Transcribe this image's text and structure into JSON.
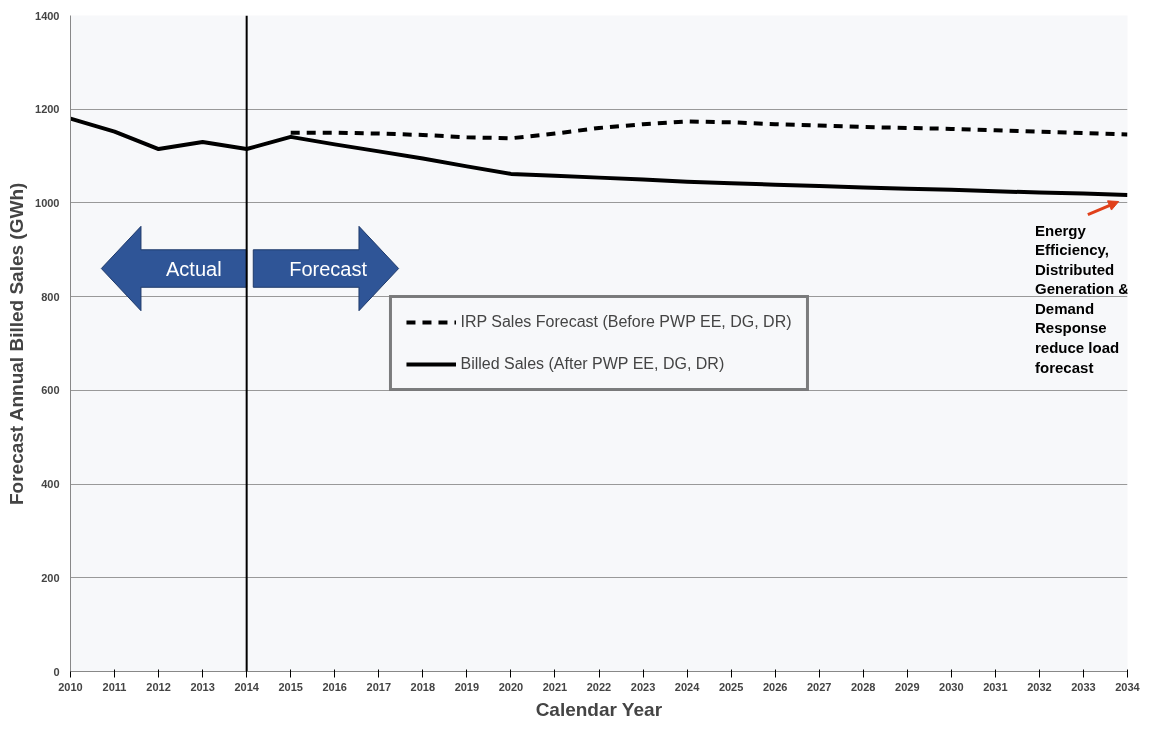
{
  "chart_data": {
    "type": "line",
    "xlabel": "Calendar Year",
    "ylabel": "Forecast Annual Billed Sales (GWh)",
    "x": [
      2010,
      2011,
      2012,
      2013,
      2014,
      2015,
      2016,
      2017,
      2018,
      2019,
      2020,
      2021,
      2022,
      2023,
      2024,
      2025,
      2026,
      2027,
      2028,
      2029,
      2030,
      2031,
      2032,
      2033,
      2034
    ],
    "series": [
      {
        "name": "IRP Sales Forecast (Before PWP EE, DG, DR)",
        "color": "#000000",
        "line_style": "dashed",
        "values": [
          null,
          null,
          null,
          null,
          null,
          1150,
          1150,
          1148,
          1145,
          1140,
          1138,
          1148,
          1160,
          1168,
          1174,
          1172,
          1168,
          1165,
          1162,
          1160,
          1158,
          1155,
          1152,
          1149,
          1146
        ]
      },
      {
        "name": "Billed Sales (After PWP EE, DG, DR)",
        "color": "#000000",
        "line_style": "solid",
        "values": [
          1180,
          1152,
          1115,
          1130,
          1115,
          1141,
          1125,
          1110,
          1095,
          1078,
          1062,
          1058,
          1054,
          1050,
          1045,
          1042,
          1039,
          1036,
          1033,
          1030,
          1028,
          1025,
          1022,
          1020,
          1017
        ]
      }
    ],
    "xlim": [
      2010,
      2034
    ],
    "xticks": [
      2010,
      2011,
      2012,
      2013,
      2014,
      2015,
      2016,
      2017,
      2018,
      2019,
      2020,
      2021,
      2022,
      2023,
      2024,
      2025,
      2026,
      2027,
      2028,
      2029,
      2030,
      2031,
      2032,
      2033,
      2034
    ],
    "ylim": [
      0,
      1400
    ],
    "yticks": [
      0,
      200,
      400,
      600,
      800,
      1000,
      1200,
      1400
    ],
    "grid": "y",
    "legend": "center",
    "ref_lines": [
      {
        "axis": "x",
        "value": 2014,
        "color": "#000000"
      }
    ],
    "annotations": [
      "Actual",
      "Forecast",
      "Energy Efficiency, Distributed Generation & Demand Response reduce load forecast"
    ]
  }
}
